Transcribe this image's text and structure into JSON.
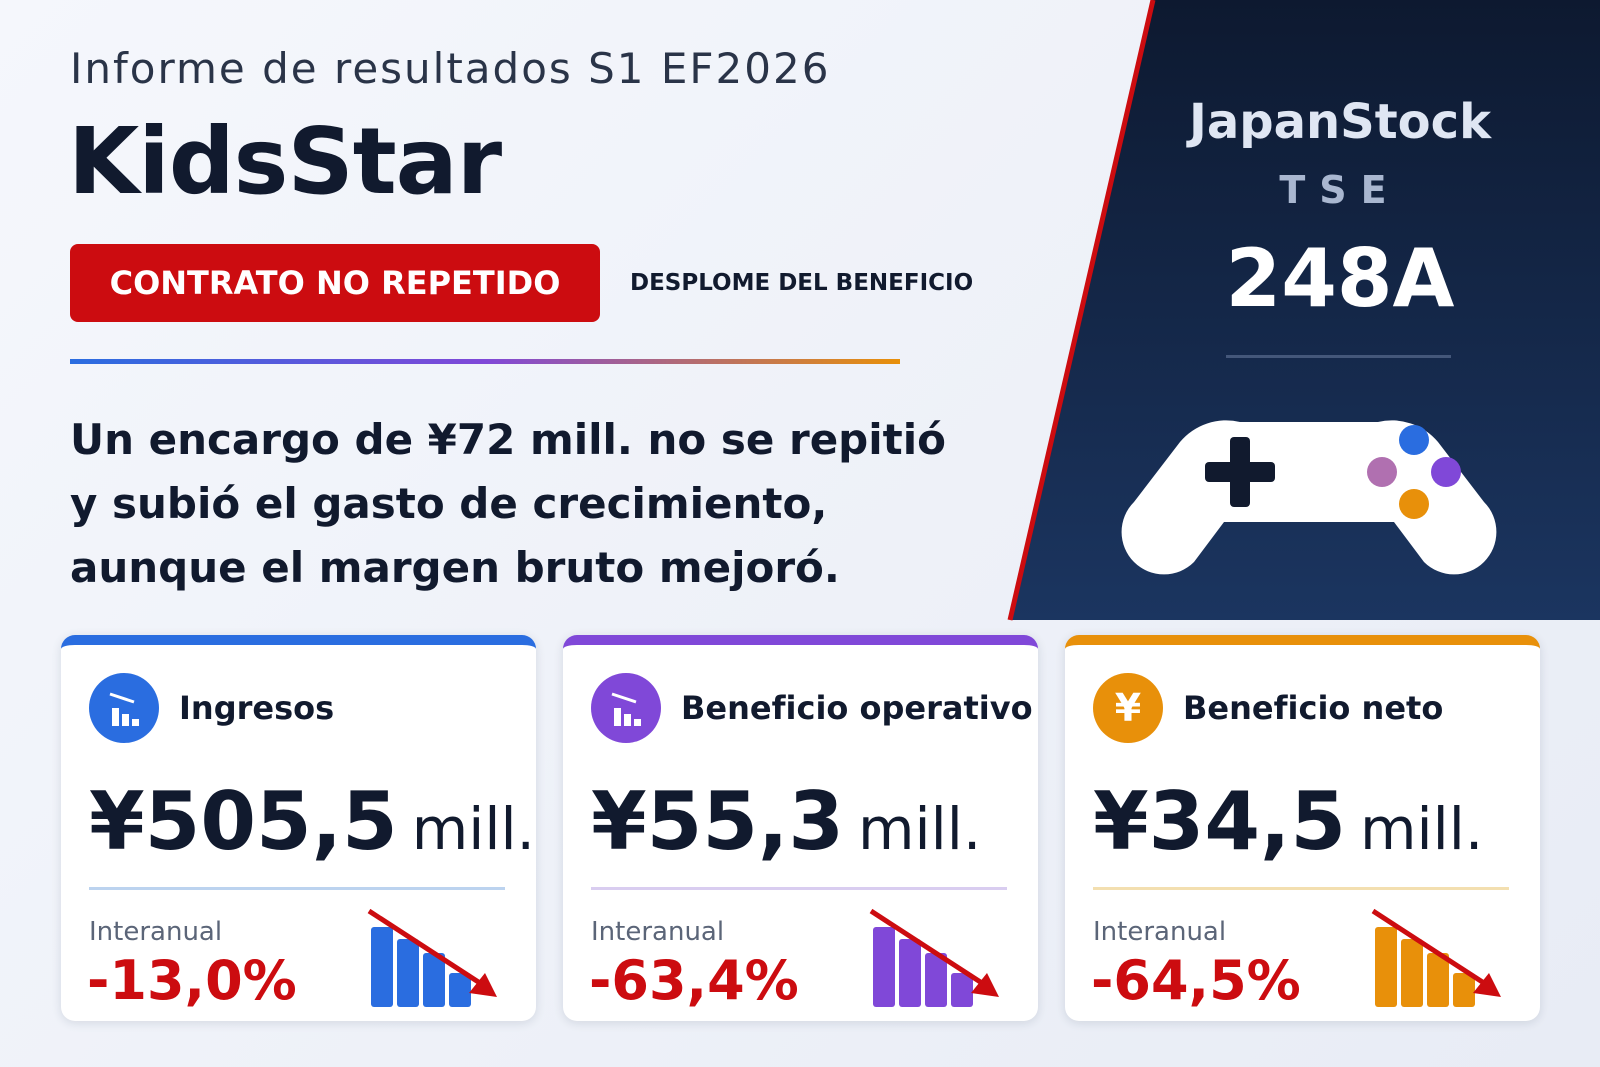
{
  "header": {
    "subtitle": "Informe de resultados S1 EF2026",
    "title": "KidsStar",
    "badge": "CONTRATO NO REPETIDO",
    "tag": "DESPLOME DEL BENEFICIO"
  },
  "summary": "Un encargo de ¥72 mill. no se repitió y subió el gasto de crecimiento, aunque el margen bruto mejoró.",
  "ticker": {
    "brand": "JapanStock",
    "exchange": "TSE",
    "code": "248A"
  },
  "cards": [
    {
      "label": "Ingresos",
      "value": "¥505,5",
      "unit": "mill.",
      "change_label": "Interanual",
      "change": "-13,0%"
    },
    {
      "label": "Beneficio operativo",
      "value": "¥55,3",
      "unit": "mill.",
      "change_label": "Interanual",
      "change": "-63,4%"
    },
    {
      "label": "Beneficio neto",
      "icon": "¥",
      "value": "¥34,5",
      "unit": "mill.",
      "change_label": "Interanual",
      "change": "-64,5%"
    }
  ]
}
